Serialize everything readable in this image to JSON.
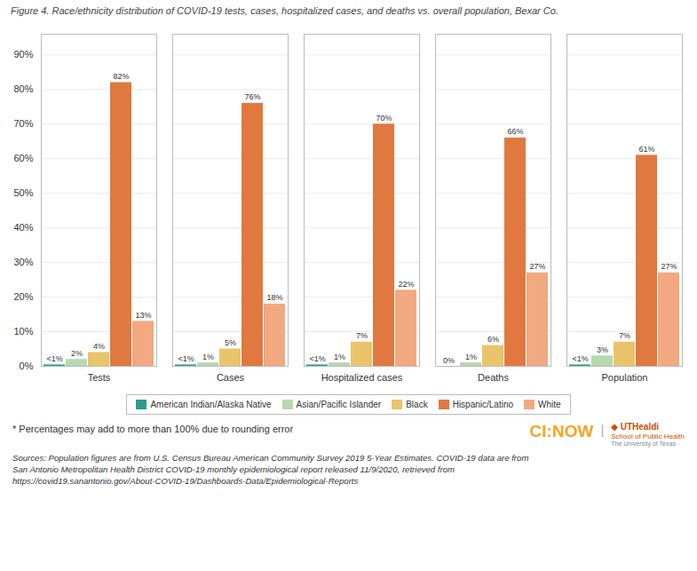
{
  "chart_data": {
    "type": "bar",
    "title": "Figure 4. Race/ethnicity distribution of COVID-19 tests, cases, hospitalized cases, and deaths vs. overall population, Bexar Co.",
    "categories": [
      "Tests",
      "Cases",
      "Hospitalized cases",
      "Deaths",
      "Population"
    ],
    "series": [
      {
        "name": "American Indian/Alaska Native",
        "color": "#2a9d8f",
        "values": [
          0.4,
          0.4,
          0.4,
          0.0,
          0.4
        ],
        "value_labels": [
          "<1%",
          "<1%",
          "<1%",
          "0%",
          "<1%"
        ]
      },
      {
        "name": "Asian/Pacific Islander",
        "color": "#b8d8b0",
        "values": [
          2,
          1,
          1,
          1,
          3
        ],
        "value_labels": [
          "2%",
          "1%",
          "1%",
          "1%",
          "3%"
        ]
      },
      {
        "name": "Black",
        "color": "#e9c46a",
        "values": [
          4,
          5,
          7,
          6,
          7
        ],
        "value_labels": [
          "4%",
          "5%",
          "7%",
          "6%",
          "7%"
        ]
      },
      {
        "name": "Hispanic/Latino",
        "color": "#e07840",
        "values": [
          82,
          76,
          70,
          66,
          61
        ],
        "value_labels": [
          "82%",
          "76%",
          "70%",
          "66%",
          "61%"
        ]
      },
      {
        "name": "White",
        "color": "#f2a880",
        "values": [
          13,
          18,
          22,
          27,
          27
        ],
        "value_labels": [
          "13%",
          "18%",
          "22%",
          "27%",
          "27%"
        ]
      }
    ],
    "ylim": [
      0,
      96
    ],
    "yticks": [
      {
        "value": 0,
        "label": "0%"
      },
      {
        "value": 10,
        "label": "10%"
      },
      {
        "value": 20,
        "label": "20%"
      },
      {
        "value": 30,
        "label": "30%"
      },
      {
        "value": 40,
        "label": "40%"
      },
      {
        "value": 50,
        "label": "50%"
      },
      {
        "value": 60,
        "label": "60%"
      },
      {
        "value": 70,
        "label": "70%"
      },
      {
        "value": 80,
        "label": "80%"
      },
      {
        "value": 90,
        "label": "90%"
      }
    ],
    "grid": true,
    "legend": "bottom",
    "data_labels": true,
    "annotations": [
      {
        "text": "* Percentages may add to more than 100% due to rounding error"
      },
      {
        "text": "CI:NOW",
        "color": "#f5a623"
      },
      {
        "text": "|"
      },
      {
        "text": "◆ UTHealdi",
        "color": "#c85000"
      },
      {
        "text": "School of Public Health",
        "color": "#c85000"
      },
      {
        "text": "The University of Texas"
      },
      {
        "text": "Sources: Population figures are from U.S. Census Bureau American Community Survey 2019 5-Year Estimates. COVID-19 data are from"
      },
      {
        "text": "San Antonio Metropolitan Health District COVID-19 monthly epidemiological report released 11/9/2020, retrieved from"
      },
      {
        "text": "https://covid19.sanantonio.gov/About-COVID-19/Dashboards-Data/Epidemiological-Reports"
      }
    ]
  }
}
